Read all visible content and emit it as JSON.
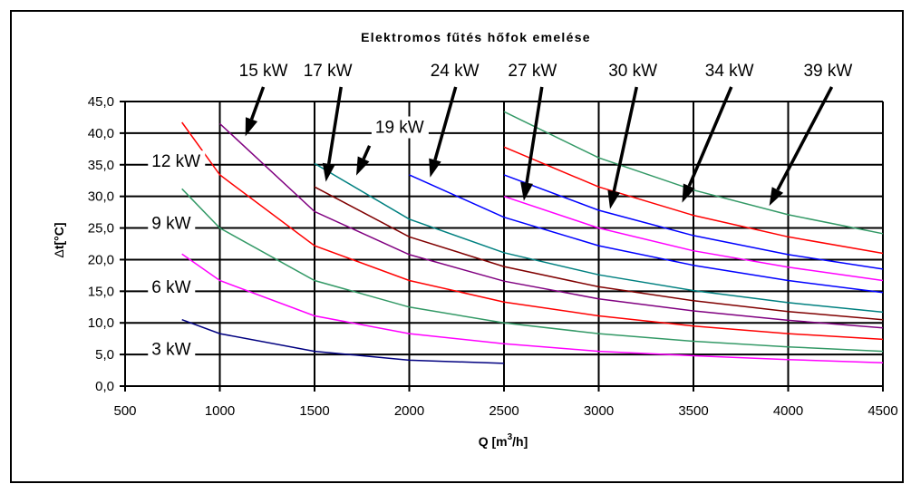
{
  "chart_data": {
    "type": "line",
    "title": "Elektromos fűtés hőfok emelése",
    "xlabel_main": "Q [m",
    "xlabel_sup": "3",
    "xlabel_end": "/h]",
    "ylabel_delta": "Δ",
    "ylabel_rest": "t[°C]",
    "xlim": [
      500,
      4500
    ],
    "ylim": [
      0,
      45
    ],
    "x_ticks": [
      500,
      1000,
      1500,
      2000,
      2500,
      3000,
      3500,
      4000,
      4500
    ],
    "x_tick_labels": [
      "500",
      "1000",
      "1500",
      "2000",
      "2500",
      "3000",
      "3500",
      "4000",
      "4500"
    ],
    "y_ticks": [
      0,
      5,
      10,
      15,
      20,
      25,
      30,
      35,
      40,
      45
    ],
    "y_tick_labels": [
      "0,0",
      "5,0",
      "10,0",
      "15,0",
      "20,0",
      "25,0",
      "30,0",
      "35,0",
      "40,0",
      "45,0"
    ],
    "grid": true,
    "series": [
      {
        "name": "3 kW",
        "color": "#000080",
        "x": [
          800,
          1000,
          1500,
          2000,
          2500
        ],
        "y": [
          10.5,
          8.3,
          5.5,
          4.1,
          3.6
        ]
      },
      {
        "name": "6 kW",
        "color": "#ff00ff",
        "x": [
          800,
          1000,
          1500,
          2000,
          2500,
          3000,
          3500,
          4000,
          4500
        ],
        "y": [
          20.9,
          16.7,
          11.1,
          8.3,
          6.7,
          5.5,
          4.8,
          4.2,
          3.7
        ]
      },
      {
        "name": "9 kW",
        "color": "#339966",
        "x": [
          800,
          1000,
          1500,
          2000,
          2500,
          3000,
          3500,
          4000,
          4500
        ],
        "y": [
          31.2,
          25.0,
          16.7,
          12.5,
          10.0,
          8.3,
          7.1,
          6.2,
          5.5
        ]
      },
      {
        "name": "12 kW",
        "color": "#ff0000",
        "x": [
          800,
          1000,
          1500,
          2000,
          2500,
          3000,
          3500,
          4000,
          4500
        ],
        "y": [
          41.7,
          33.4,
          22.2,
          16.7,
          13.3,
          11.1,
          9.5,
          8.3,
          7.4
        ]
      },
      {
        "name": "15 kW",
        "color": "#800080",
        "x": [
          1000,
          1500,
          2000,
          2500,
          3000,
          3500,
          4000,
          4500
        ],
        "y": [
          41.5,
          27.6,
          20.8,
          16.6,
          13.8,
          11.9,
          10.4,
          9.2
        ]
      },
      {
        "name": "17 kW",
        "color": "#800000",
        "x": [
          1500,
          2000,
          2500,
          3000,
          3500,
          4000,
          4500
        ],
        "y": [
          31.5,
          23.6,
          18.9,
          15.7,
          13.5,
          11.8,
          10.5
        ]
      },
      {
        "name": "19 kW",
        "color": "#008080",
        "x": [
          1500,
          2000,
          2500,
          3000,
          3500,
          4000,
          4500
        ],
        "y": [
          35.2,
          26.4,
          21.1,
          17.6,
          15.1,
          13.2,
          11.7
        ]
      },
      {
        "name": "24 kW",
        "color": "#0000ff",
        "x": [
          2000,
          2500,
          3000,
          3500,
          4000,
          4500
        ],
        "y": [
          33.4,
          26.7,
          22.2,
          19.1,
          16.7,
          14.8
        ]
      },
      {
        "name": "27 kW",
        "color": "#ff00ff",
        "x": [
          2500,
          3000,
          3500,
          4000,
          4500
        ],
        "y": [
          30.0,
          25.0,
          21.4,
          18.8,
          16.7
        ]
      },
      {
        "name": "30 kW",
        "color": "#0000ff",
        "x": [
          2500,
          3000,
          3500,
          4000,
          4500
        ],
        "y": [
          33.4,
          27.8,
          23.8,
          20.8,
          18.5
        ]
      },
      {
        "name": "34 kW",
        "color": "#ff0000",
        "x": [
          2500,
          3000,
          3500,
          4000,
          4500
        ],
        "y": [
          37.8,
          31.5,
          27.0,
          23.6,
          21.0
        ]
      },
      {
        "name": "39 kW",
        "color": "#339966",
        "x": [
          2500,
          3000,
          3500,
          4000,
          4500
        ],
        "y": [
          43.4,
          36.1,
          31.0,
          27.1,
          24.1
        ]
      }
    ],
    "inline_labels": [
      {
        "text": "3 kW",
        "x": 640,
        "y": 5.1
      },
      {
        "text": "6 kW",
        "x": 640,
        "y": 14.9
      },
      {
        "text": "9 kW",
        "x": 640,
        "y": 25.0
      },
      {
        "text": "12 kW",
        "x": 640,
        "y": 34.8
      },
      {
        "text": "19 kW",
        "x": 1820,
        "y": 40.2
      }
    ],
    "arrow_labels": [
      {
        "text": "15 kW",
        "label_x": 1230,
        "label_y": 49.0,
        "from_x": 1230,
        "from_y": 47.3,
        "to_x": 1135,
        "to_y": 39.5
      },
      {
        "text": "17 kW",
        "label_x": 1570,
        "label_y": 49.0,
        "from_x": 1640,
        "from_y": 47.3,
        "to_x": 1560,
        "to_y": 32.3
      },
      {
        "text": "19 kW",
        "label_x": null,
        "label_y": null,
        "from_x": 1790,
        "from_y": 38.0,
        "to_x": 1720,
        "to_y": 33.3
      },
      {
        "text": "24 kW",
        "label_x": 2240,
        "label_y": 49.0,
        "from_x": 2245,
        "from_y": 47.3,
        "to_x": 2110,
        "to_y": 33.0
      },
      {
        "text": "27 kW",
        "label_x": 2650,
        "label_y": 49.0,
        "from_x": 2700,
        "from_y": 47.3,
        "to_x": 2605,
        "to_y": 29.3
      },
      {
        "text": "30 kW",
        "label_x": 3180,
        "label_y": 49.0,
        "from_x": 3200,
        "from_y": 47.3,
        "to_x": 3060,
        "to_y": 28.0
      },
      {
        "text": "34 kW",
        "label_x": 3690,
        "label_y": 49.0,
        "from_x": 3700,
        "from_y": 47.3,
        "to_x": 3440,
        "to_y": 29.0
      },
      {
        "text": "39 kW",
        "label_x": 4210,
        "label_y": 49.0,
        "from_x": 4230,
        "from_y": 47.3,
        "to_x": 3900,
        "to_y": 28.5
      }
    ]
  }
}
